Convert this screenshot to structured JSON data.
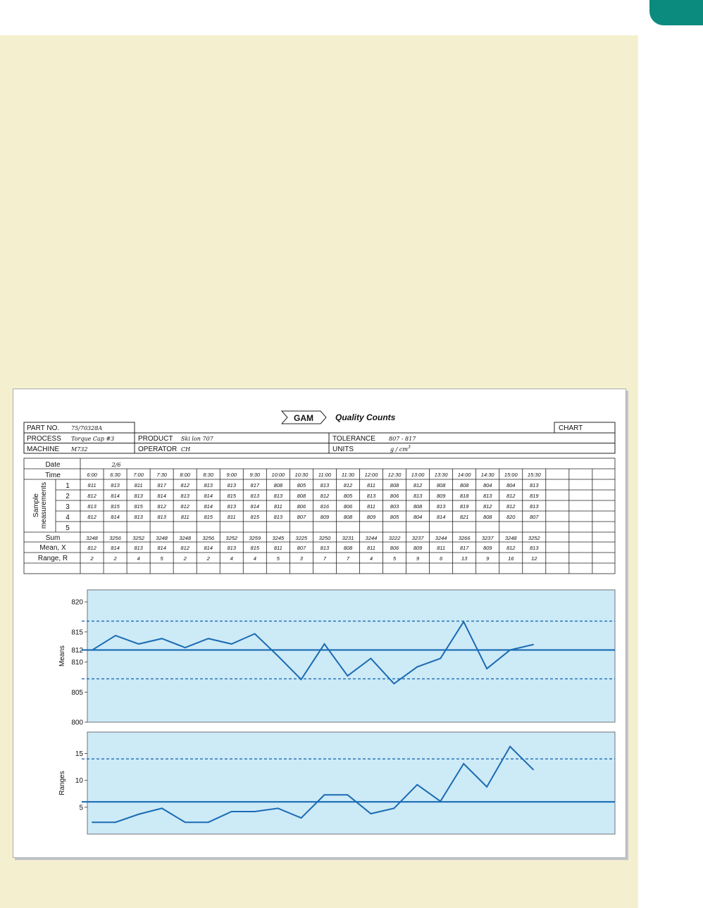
{
  "header": {
    "brand": "GAM",
    "title": "Quality Counts",
    "part_no_label": "PART NO.",
    "part_no": "75/70328A",
    "chart_label": "CHART",
    "process_label": "PROCESS",
    "process": "Torque Cap #3",
    "product_label": "PRODUCT",
    "product": "Ski lon 707",
    "tolerance_label": "TOLERANCE",
    "tolerance": "807 - 817",
    "machine_label": "MACHINE",
    "machine": "M732",
    "operator_label": "OPERATOR",
    "operator": "CH",
    "units_label": "UNITS",
    "units": "g / cm",
    "units_sup": "3"
  },
  "table": {
    "date_label": "Date",
    "date": "2/6",
    "time_label": "Time",
    "sample_label_1": "Sample",
    "sample_label_2": "measurements",
    "row_labels": [
      "1",
      "2",
      "3",
      "4",
      "5"
    ],
    "sum_label": "Sum",
    "mean_label": "Mean, X",
    "range_label": "Range, R",
    "times": [
      "6:00",
      "6:30",
      "7:00",
      "7:30",
      "8:00",
      "8:30",
      "9:00",
      "9:30",
      "10:00",
      "10:30",
      "11:00",
      "11:30",
      "12:00",
      "12:30",
      "13:00",
      "13:30",
      "14:00",
      "14:30",
      "15:00",
      "15:30"
    ],
    "samples": [
      [
        "811",
        "813",
        "811",
        "817",
        "812",
        "813",
        "813",
        "817",
        "808",
        "805",
        "813",
        "812",
        "811",
        "808",
        "812",
        "808",
        "808",
        "804",
        "804",
        "813"
      ],
      [
        "812",
        "814",
        "813",
        "814",
        "813",
        "814",
        "815",
        "813",
        "813",
        "808",
        "812",
        "805",
        "813",
        "806",
        "813",
        "809",
        "818",
        "813",
        "812",
        "819"
      ],
      [
        "813",
        "815",
        "815",
        "812",
        "812",
        "814",
        "813",
        "814",
        "811",
        "806",
        "816",
        "806",
        "811",
        "803",
        "808",
        "813",
        "819",
        "812",
        "812",
        "813"
      ],
      [
        "812",
        "814",
        "813",
        "813",
        "811",
        "815",
        "811",
        "815",
        "813",
        "807",
        "809",
        "808",
        "809",
        "805",
        "804",
        "814",
        "821",
        "808",
        "820",
        "807"
      ]
    ],
    "sums": [
      "3248",
      "3256",
      "3252",
      "3248",
      "3248",
      "3256",
      "3252",
      "3259",
      "3245",
      "3225",
      "3250",
      "3231",
      "3244",
      "3222",
      "3237",
      "3244",
      "3266",
      "3237",
      "3248",
      "3252"
    ],
    "means": [
      "812",
      "814",
      "813",
      "814",
      "812",
      "814",
      "813",
      "815",
      "811",
      "807",
      "813",
      "808",
      "811",
      "806",
      "809",
      "811",
      "817",
      "809",
      "812",
      "813"
    ],
    "ranges": [
      "2",
      "2",
      "4",
      "5",
      "2",
      "2",
      "4",
      "4",
      "5",
      "3",
      "7",
      "7",
      "4",
      "5",
      "9",
      "6",
      "13",
      "9",
      "16",
      "12"
    ]
  },
  "chart_data": [
    {
      "type": "line",
      "ylabel": "Means",
      "ylim": [
        800,
        822
      ],
      "yticks": [
        800,
        805,
        810,
        812,
        815,
        820
      ],
      "center_line": 812,
      "control_limits": [
        807.2,
        816.8
      ],
      "values": [
        812,
        814.4,
        813,
        813.9,
        812.4,
        813.9,
        813,
        814.7,
        811,
        807.1,
        813,
        807.7,
        810.6,
        806.4,
        809.2,
        810.6,
        816.7,
        808.9,
        812,
        812.9
      ]
    },
    {
      "type": "line",
      "ylabel": "Ranges",
      "ylim": [
        0,
        19
      ],
      "yticks": [
        5,
        10,
        15
      ],
      "center_line": 6,
      "control_limits": [
        14
      ],
      "values": [
        2.2,
        2.2,
        3.7,
        4.8,
        2.2,
        2.2,
        4.2,
        4.2,
        4.8,
        3,
        7.3,
        7.3,
        3.8,
        4.8,
        9.2,
        6.1,
        13.1,
        8.8,
        16.3,
        12
      ]
    }
  ],
  "colors": {
    "line": "#1a6bb3",
    "plot_bg": "#cdeaf7",
    "panel": "#f4f0cf",
    "tab": "#0b8a7e"
  }
}
